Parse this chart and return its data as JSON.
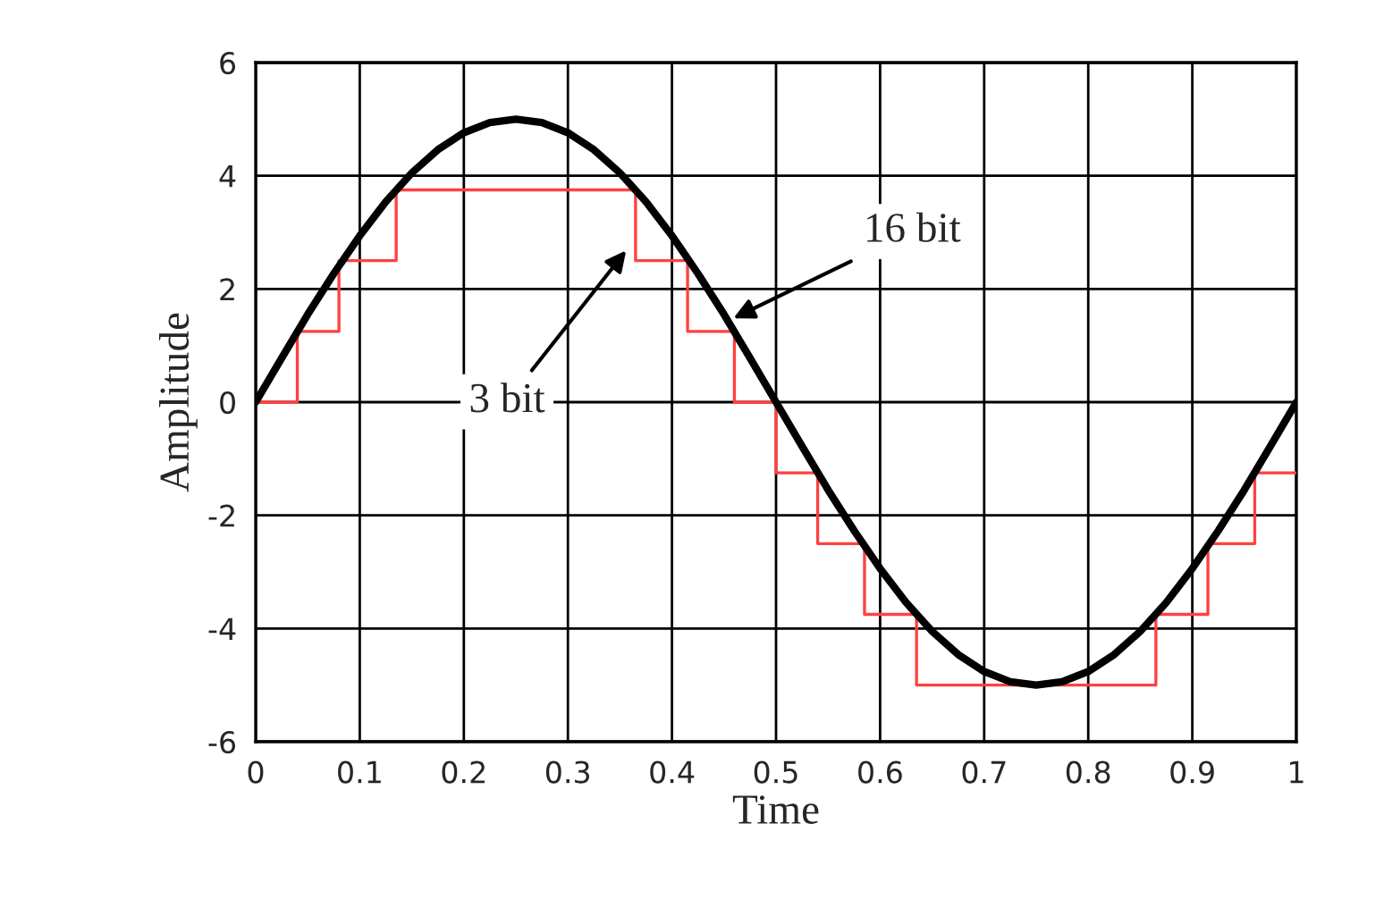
{
  "chart_data": {
    "type": "line",
    "xlabel": "Time",
    "ylabel": "Amplitude",
    "series": [
      {
        "color": "#000000",
        "x": [
          0,
          0.025,
          0.05,
          0.075,
          0.1,
          0.125,
          0.15,
          0.175,
          0.2,
          0.225,
          0.25,
          0.275,
          0.3,
          0.325,
          0.35,
          0.375,
          0.4,
          0.425,
          0.45,
          0.475,
          0.5,
          0.525,
          0.55,
          0.575,
          0.6,
          0.625,
          0.65,
          0.675,
          0.7,
          0.725,
          0.75,
          0.775,
          0.8,
          0.825,
          0.85,
          0.875,
          0.9,
          0.925,
          0.95,
          0.975,
          1.0
        ],
        "values": [
          0,
          0.78,
          1.55,
          2.27,
          2.94,
          3.54,
          4.05,
          4.46,
          4.76,
          4.94,
          5,
          4.94,
          4.76,
          4.46,
          4.05,
          3.54,
          2.94,
          2.27,
          1.55,
          0.78,
          0,
          -0.78,
          -1.55,
          -2.27,
          -2.94,
          -3.54,
          -4.05,
          -4.46,
          -4.76,
          -4.94,
          -5,
          -4.94,
          -4.76,
          -4.46,
          -4.05,
          -3.54,
          -2.94,
          -2.27,
          -1.55,
          -0.78,
          0
        ]
      },
      {
        "type": "step",
        "color": "#ff4040",
        "x": [
          0,
          0.04,
          0.08,
          0.135,
          0.365,
          0.415,
          0.46,
          0.5,
          0.54,
          0.585,
          0.635,
          0.865,
          0.915,
          0.96,
          1.0
        ],
        "values": [
          0,
          1.25,
          2.5,
          3.75,
          2.5,
          1.25,
          0,
          -1.25,
          -2.5,
          -3.75,
          -5,
          -3.75,
          -2.5,
          -1.25,
          -1.25
        ]
      }
    ],
    "annotations": [
      {
        "text": "16 bit",
        "x": 0.459,
        "y": 1.48
      },
      {
        "text": "3 bit",
        "x": 0.356,
        "y": 2.68
      }
    ],
    "xlim": [
      0,
      1
    ],
    "xticks": [
      0,
      0.1,
      0.2,
      0.3,
      0.4,
      0.5,
      0.6,
      0.7,
      0.8,
      0.9,
      1
    ],
    "ylim": [
      -6,
      6
    ],
    "yticks": [
      -6,
      -4,
      -2,
      0,
      2,
      4,
      6
    ],
    "grid": true,
    "legend": false,
    "marker": "none",
    "line_style": "solid"
  }
}
